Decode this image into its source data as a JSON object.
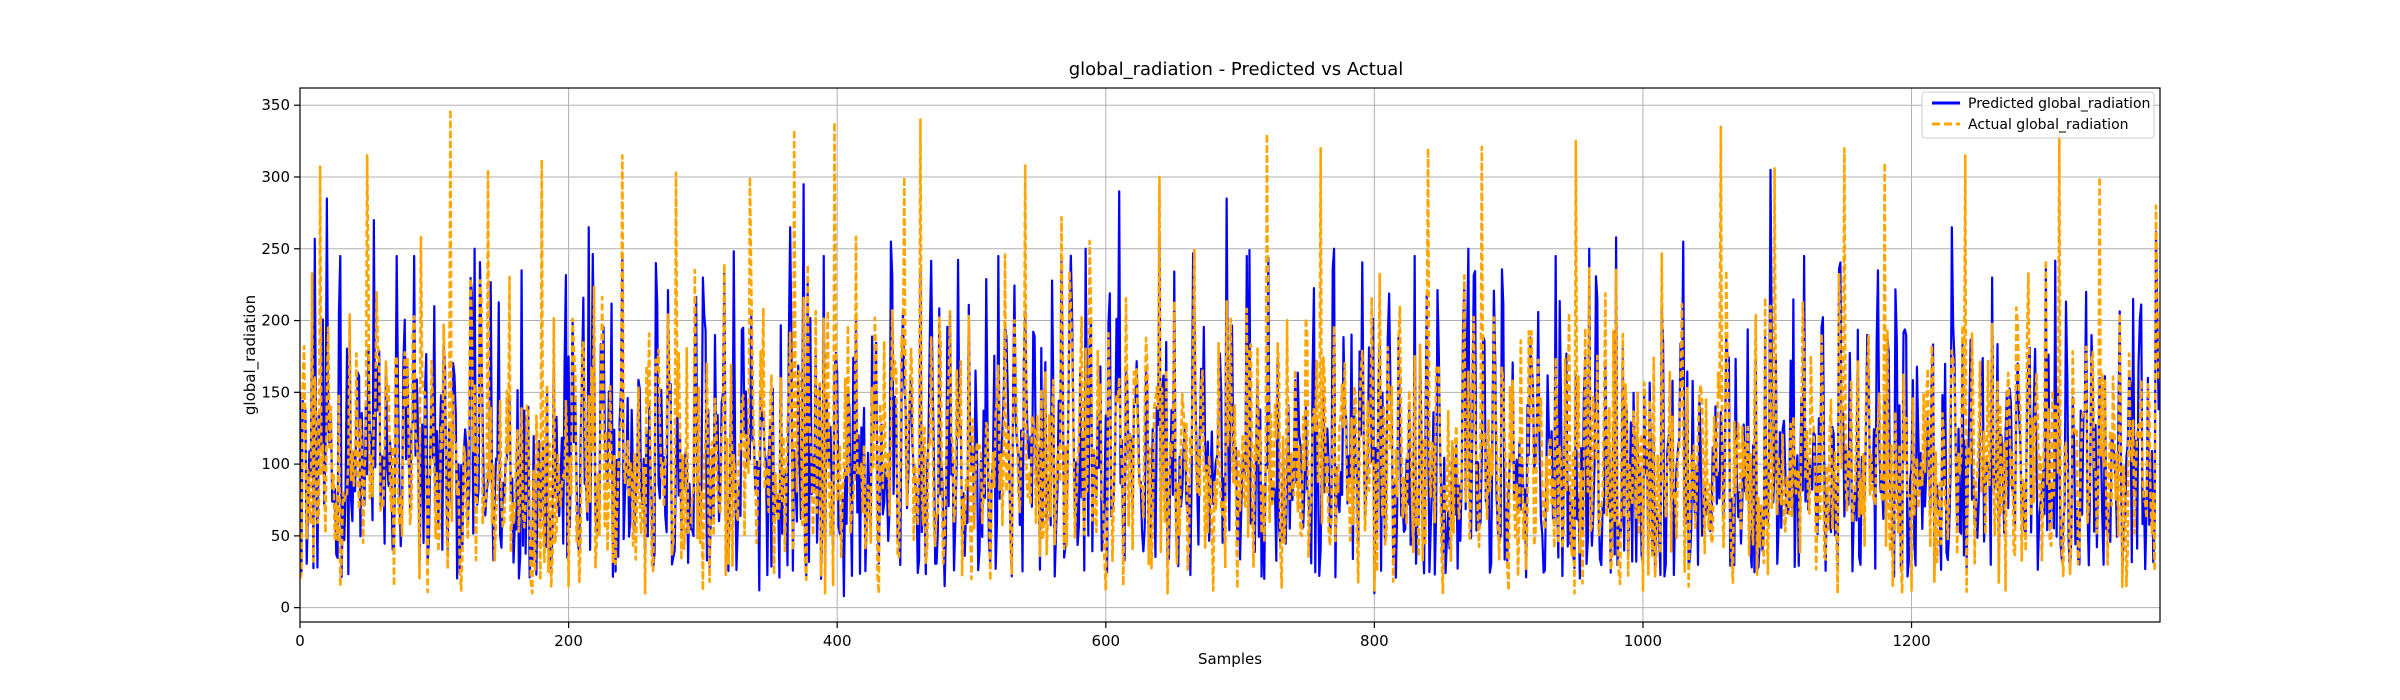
{
  "chart_data": {
    "type": "line",
    "title": "global_radiation - Predicted vs Actual",
    "xlabel": "Samples",
    "ylabel": "global_radiation",
    "xlim": [
      0,
      1385
    ],
    "ylim": [
      -10,
      362
    ],
    "x_ticks": [
      0,
      200,
      400,
      600,
      800,
      1000,
      1200
    ],
    "y_ticks": [
      0,
      50,
      100,
      150,
      200,
      250,
      300,
      350
    ],
    "grid": true,
    "legend": "top-right",
    "num_samples": 1385,
    "series": [
      {
        "name": "Predicted global_radiation",
        "color": "#0000ff",
        "style": "solid",
        "values_sparse": [
          {
            "x": 0,
            "y": 150
          },
          {
            "x": 8,
            "y": 95
          },
          {
            "x": 11,
            "y": 257
          },
          {
            "x": 20,
            "y": 285
          },
          {
            "x": 30,
            "y": 245
          },
          {
            "x": 55,
            "y": 270
          },
          {
            "x": 72,
            "y": 245
          },
          {
            "x": 85,
            "y": 245
          },
          {
            "x": 100,
            "y": 210
          },
          {
            "x": 130,
            "y": 250
          },
          {
            "x": 165,
            "y": 235
          },
          {
            "x": 200,
            "y": 175
          },
          {
            "x": 215,
            "y": 265
          },
          {
            "x": 240,
            "y": 245
          },
          {
            "x": 265,
            "y": 240
          },
          {
            "x": 300,
            "y": 230
          },
          {
            "x": 330,
            "y": 195
          },
          {
            "x": 342,
            "y": 12
          },
          {
            "x": 365,
            "y": 265
          },
          {
            "x": 375,
            "y": 295
          },
          {
            "x": 390,
            "y": 245
          },
          {
            "x": 405,
            "y": 8
          },
          {
            "x": 440,
            "y": 255
          },
          {
            "x": 480,
            "y": 15
          },
          {
            "x": 520,
            "y": 245
          },
          {
            "x": 585,
            "y": 250
          },
          {
            "x": 610,
            "y": 290
          },
          {
            "x": 640,
            "y": 260
          },
          {
            "x": 690,
            "y": 285
          },
          {
            "x": 705,
            "y": 245
          },
          {
            "x": 770,
            "y": 250
          },
          {
            "x": 800,
            "y": 10
          },
          {
            "x": 830,
            "y": 245
          },
          {
            "x": 870,
            "y": 250
          },
          {
            "x": 900,
            "y": 80
          },
          {
            "x": 935,
            "y": 245
          },
          {
            "x": 960,
            "y": 250
          },
          {
            "x": 980,
            "y": 258
          },
          {
            "x": 1000,
            "y": 30
          },
          {
            "x": 1030,
            "y": 255
          },
          {
            "x": 1095,
            "y": 305
          },
          {
            "x": 1120,
            "y": 245
          },
          {
            "x": 1175,
            "y": 235
          },
          {
            "x": 1230,
            "y": 265
          },
          {
            "x": 1260,
            "y": 230
          },
          {
            "x": 1300,
            "y": 240
          },
          {
            "x": 1330,
            "y": 220
          },
          {
            "x": 1340,
            "y": 160
          },
          {
            "x": 1365,
            "y": 215
          },
          {
            "x": 1382,
            "y": 262
          }
        ]
      },
      {
        "name": "Actual global_radiation",
        "color": "#ffa500",
        "style": "dashed",
        "values_sparse": [
          {
            "x": 0,
            "y": 20
          },
          {
            "x": 15,
            "y": 308
          },
          {
            "x": 30,
            "y": 15
          },
          {
            "x": 50,
            "y": 315
          },
          {
            "x": 70,
            "y": 15
          },
          {
            "x": 90,
            "y": 258
          },
          {
            "x": 112,
            "y": 347
          },
          {
            "x": 120,
            "y": 12
          },
          {
            "x": 140,
            "y": 305
          },
          {
            "x": 180,
            "y": 312
          },
          {
            "x": 200,
            "y": 15
          },
          {
            "x": 240,
            "y": 315
          },
          {
            "x": 280,
            "y": 303
          },
          {
            "x": 300,
            "y": 12
          },
          {
            "x": 335,
            "y": 300
          },
          {
            "x": 368,
            "y": 333
          },
          {
            "x": 398,
            "y": 338
          },
          {
            "x": 430,
            "y": 22
          },
          {
            "x": 450,
            "y": 300
          },
          {
            "x": 462,
            "y": 340
          },
          {
            "x": 500,
            "y": 20
          },
          {
            "x": 540,
            "y": 308
          },
          {
            "x": 600,
            "y": 12
          },
          {
            "x": 640,
            "y": 300
          },
          {
            "x": 680,
            "y": 12
          },
          {
            "x": 720,
            "y": 330
          },
          {
            "x": 760,
            "y": 320
          },
          {
            "x": 800,
            "y": 12
          },
          {
            "x": 840,
            "y": 320
          },
          {
            "x": 880,
            "y": 321
          },
          {
            "x": 900,
            "y": 12
          },
          {
            "x": 950,
            "y": 325
          },
          {
            "x": 1000,
            "y": 12
          },
          {
            "x": 1058,
            "y": 335
          },
          {
            "x": 1098,
            "y": 306
          },
          {
            "x": 1150,
            "y": 320
          },
          {
            "x": 1180,
            "y": 310
          },
          {
            "x": 1200,
            "y": 12
          },
          {
            "x": 1240,
            "y": 315
          },
          {
            "x": 1270,
            "y": 12
          },
          {
            "x": 1310,
            "y": 332
          },
          {
            "x": 1340,
            "y": 300
          },
          {
            "x": 1360,
            "y": 15
          },
          {
            "x": 1382,
            "y": 280
          }
        ]
      }
    ]
  }
}
